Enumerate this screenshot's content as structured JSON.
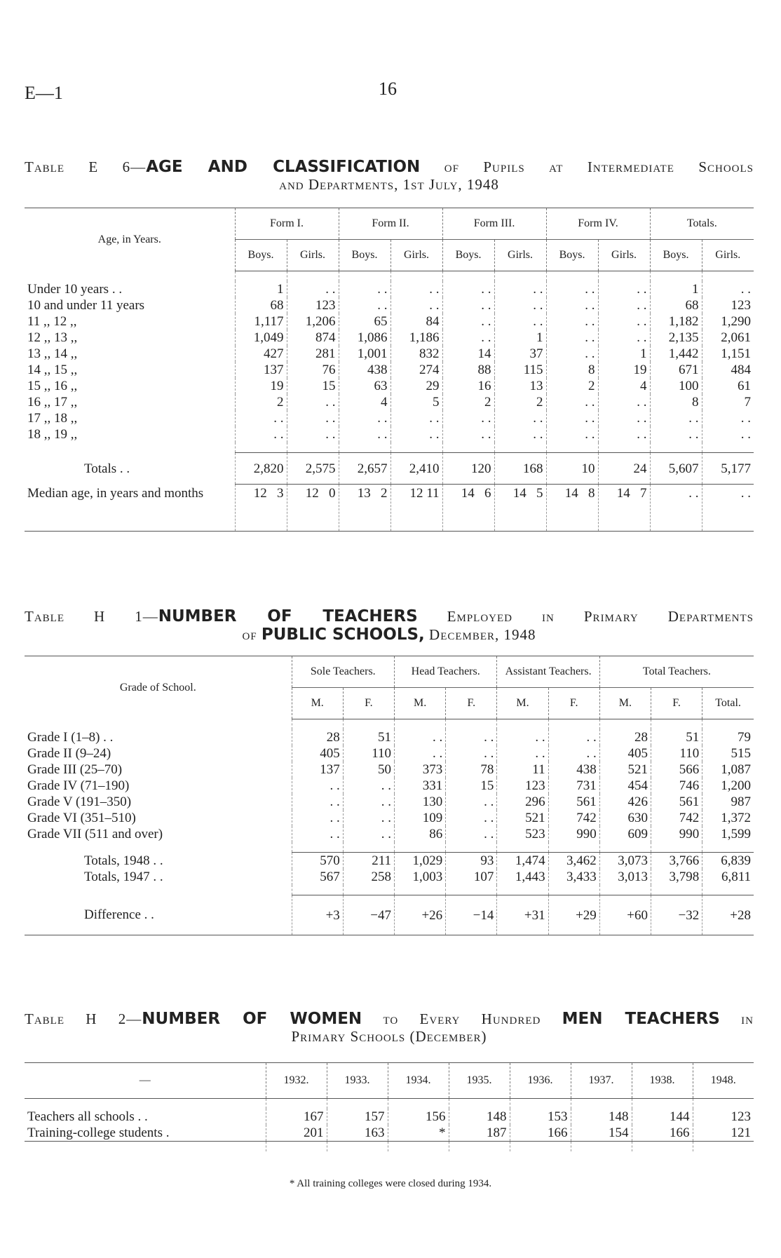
{
  "page": {
    "ref": "E—1",
    "number": "16"
  },
  "table_e6": {
    "title_prefix": "Table E 6—",
    "title_bold": "AGE AND CLASSIFICATION",
    "title_rest": " of Pupils at Intermediate Schools",
    "title_line2": "and Departments, 1st July, 1948",
    "row_header": "Age, in Years.",
    "groups": [
      "Form I.",
      "Form II.",
      "Form III.",
      "Form IV.",
      "Totals."
    ],
    "subheaders": [
      "Boys.",
      "Girls.",
      "Boys.",
      "Girls.",
      "Boys.",
      "Girls.",
      "Boys.",
      "Girls.",
      "Boys.",
      "Girls."
    ],
    "rows": [
      {
        "label": "Under 10 years  . .",
        "dots": ". .",
        "values": [
          "1",
          ". .",
          ". .",
          ". .",
          ". .",
          ". .",
          ". .",
          ". .",
          "1",
          ". ."
        ]
      },
      {
        "label": "10 and under 11 years",
        "dots": ". .",
        "values": [
          "68",
          "123",
          ". .",
          ". .",
          ". .",
          ". .",
          ". .",
          ". .",
          "68",
          "123"
        ]
      },
      {
        "label": "11      ,,      12     ,,",
        "dots": ". .",
        "values": [
          "1,117",
          "1,206",
          "65",
          "84",
          ". .",
          ". .",
          ". .",
          ". .",
          "1,182",
          "1,290"
        ]
      },
      {
        "label": "12      ,,      13     ,,",
        "dots": ". .",
        "values": [
          "1,049",
          "874",
          "1,086",
          "1,186",
          ". .",
          "1",
          ". .",
          ". .",
          "2,135",
          "2,061"
        ]
      },
      {
        "label": "13      ,,      14     ,,",
        "dots": ". .",
        "values": [
          "427",
          "281",
          "1,001",
          "832",
          "14",
          "37",
          ". .",
          "1",
          "1,442",
          "1,151"
        ]
      },
      {
        "label": "14      ,,      15     ,,",
        "dots": ". .",
        "values": [
          "137",
          "76",
          "438",
          "274",
          "88",
          "115",
          "8",
          "19",
          "671",
          "484"
        ]
      },
      {
        "label": "15      ,,      16     ,,",
        "dots": ". .",
        "values": [
          "19",
          "15",
          "63",
          "29",
          "16",
          "13",
          "2",
          "4",
          "100",
          "61"
        ]
      },
      {
        "label": "16      ,,      17     ,,",
        "dots": ". .",
        "values": [
          "2",
          ". .",
          "4",
          "5",
          "2",
          "2",
          ". .",
          ". .",
          "8",
          "7"
        ]
      },
      {
        "label": "17      ,,      18     ,,",
        "dots": ". .",
        "values": [
          ". .",
          ". .",
          ". .",
          ". .",
          ". .",
          ". .",
          ". .",
          ". .",
          ". .",
          ". ."
        ]
      },
      {
        "label": "18      ,,      19     ,,",
        "dots": ". .",
        "values": [
          ". .",
          ". .",
          ". .",
          ". .",
          ". .",
          ". .",
          ". .",
          ". .",
          ". .",
          ". ."
        ]
      }
    ],
    "totals": {
      "label": "Totals  . .",
      "dots": ". .",
      "values": [
        "2,820",
        "2,575",
        "2,657",
        "2,410",
        "120",
        "168",
        "10",
        "24",
        "5,607",
        "5,177"
      ]
    },
    "median": {
      "label": "Median age, in years and months",
      "values": [
        "12   3",
        "12   0",
        "13   2",
        "12 11",
        "14   6",
        "14   5",
        "14   8",
        "14   7",
        ". .",
        ". ."
      ]
    }
  },
  "table_h1": {
    "title_prefix": "Table H 1—",
    "title_bold": "NUMBER OF TEACHERS",
    "title_rest": " Employed in Primary Departments",
    "title_line2_pre": "of ",
    "title_line2_bold": "PUBLIC SCHOOLS,",
    "title_line2_rest": " December, 1948",
    "row_header": "Grade of School.",
    "groups": [
      "Sole Teachers.",
      "Head Teachers.",
      "Assistant Teachers.",
      "Total Teachers."
    ],
    "subheaders": [
      "M.",
      "F.",
      "M.",
      "F.",
      "M.",
      "F.",
      "M.",
      "F.",
      "Total."
    ],
    "rows": [
      {
        "label": "Grade I (1–8)  . .",
        "dots": ". .",
        "values": [
          "28",
          "51",
          ". .",
          ". .",
          ". .",
          ". .",
          "28",
          "51",
          "79"
        ]
      },
      {
        "label": "Grade II (9–24)",
        "dots": ". .",
        "values": [
          "405",
          "110",
          ". .",
          ". .",
          ". .",
          ". .",
          "405",
          "110",
          "515"
        ]
      },
      {
        "label": "Grade III (25–70)",
        "dots": ". .",
        "values": [
          "137",
          "50",
          "373",
          "78",
          "11",
          "438",
          "521",
          "566",
          "1,087"
        ]
      },
      {
        "label": "Grade IV (71–190)",
        "dots": ". .",
        "values": [
          ". .",
          ". .",
          "331",
          "15",
          "123",
          "731",
          "454",
          "746",
          "1,200"
        ]
      },
      {
        "label": "Grade V (191–350)",
        "dots": ". .",
        "values": [
          ". .",
          ". .",
          "130",
          ". .",
          "296",
          "561",
          "426",
          "561",
          "987"
        ]
      },
      {
        "label": "Grade VI (351–510)",
        "dots": ". .",
        "values": [
          ". .",
          ". .",
          "109",
          ". .",
          "521",
          "742",
          "630",
          "742",
          "1,372"
        ]
      },
      {
        "label": "Grade VII (511 and over)",
        "dots": ". .",
        "values": [
          ". .",
          ". .",
          "86",
          ". .",
          "523",
          "990",
          "609",
          "990",
          "1,599"
        ]
      }
    ],
    "totals": [
      {
        "label": "Totals, 1948   . .",
        "dots": ". .",
        "values": [
          "570",
          "211",
          "1,029",
          "93",
          "1,474",
          "3,462",
          "3,073",
          "3,766",
          "6,839"
        ]
      },
      {
        "label": "Totals, 1947   . .",
        "dots": ". .",
        "values": [
          "567",
          "258",
          "1,003",
          "107",
          "1,443",
          "3,433",
          "3,013",
          "3,798",
          "6,811"
        ]
      }
    ],
    "difference": {
      "label": "Difference     . .",
      "dots": ". .",
      "values": [
        "+3",
        "−47",
        "+26",
        "−14",
        "+31",
        "+29",
        "+60",
        "−32",
        "+28"
      ]
    }
  },
  "table_h2": {
    "title_prefix": "Table H 2—",
    "title_bold1": "NUMBER OF WOMEN",
    "title_mid": " to Every Hundred ",
    "title_bold2": "MEN TEACHERS",
    "title_rest": " in",
    "title_line2": "Primary Schools (December)",
    "row_header": "—",
    "years": [
      "1932.",
      "1933.",
      "1934.",
      "1935.",
      "1936.",
      "1937.",
      "1938.",
      "1948."
    ],
    "rows": [
      {
        "label": "Teachers all schools  . .",
        "dots": ". .",
        "values": [
          "167",
          "157",
          "156",
          "148",
          "153",
          "148",
          "144",
          "123"
        ]
      },
      {
        "label": "Training-college students  .",
        "dots": ". .",
        "values": [
          "201",
          "163",
          "*",
          "187",
          "166",
          "154",
          "166",
          "121"
        ]
      }
    ],
    "footnote": "* All training colleges were closed during 1934."
  }
}
